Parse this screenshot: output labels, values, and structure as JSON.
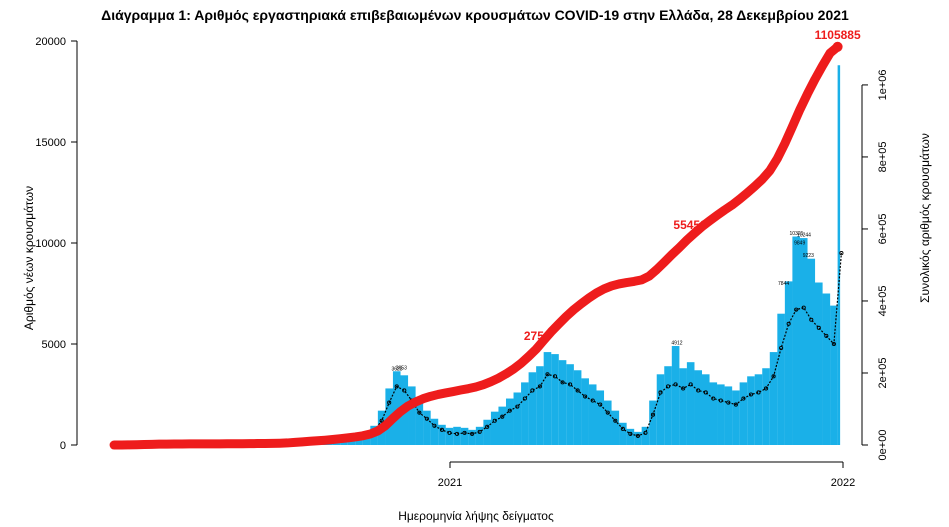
{
  "title": "Διάγραμμα 1: Αριθμός εργαστηριακά επιβεβαιωμένων κρουσμάτων COVID-19 στην Ελλάδα, 28 Δεκεμβρίου 2021",
  "chart_data": {
    "type": "bar",
    "title": "Διάγραμμα 1: Αριθμός εργαστηριακά επιβεβαιωμένων κρουσμάτων COVID-19 στην Ελλάδα, 28 Δεκεμβρίου 2021",
    "xlabel": "Ημερομηνία λήψης δείγματος",
    "ylabel": "Αριθμός νέων κρουσμάτων",
    "ylabel_right": "Συνολικός αριθμός κρουσμάτων",
    "ylim": [
      0,
      20000
    ],
    "ylim_right": [
      0,
      1122000
    ],
    "xticks": [
      "2021",
      "2022"
    ],
    "yticks": [
      "0",
      "5000",
      "10000",
      "15000",
      "20000"
    ],
    "yticks_right": [
      "0e+00",
      "2e+05",
      "4e+05",
      "6e+05",
      "8e+05",
      "1e+06"
    ],
    "grid": false,
    "colors": {
      "bars": "#1ab0e8",
      "moving_average": "#000000",
      "cumulative": "#ee1c1c"
    },
    "x": [
      "2020-02-24",
      "2020-03-02",
      "2020-03-09",
      "2020-03-16",
      "2020-03-23",
      "2020-03-30",
      "2020-04-06",
      "2020-04-13",
      "2020-04-20",
      "2020-04-27",
      "2020-05-04",
      "2020-05-11",
      "2020-05-18",
      "2020-05-25",
      "2020-06-01",
      "2020-06-08",
      "2020-06-15",
      "2020-06-22",
      "2020-06-29",
      "2020-07-06",
      "2020-07-13",
      "2020-07-20",
      "2020-07-27",
      "2020-08-03",
      "2020-08-10",
      "2020-08-17",
      "2020-08-24",
      "2020-08-31",
      "2020-09-07",
      "2020-09-14",
      "2020-09-21",
      "2020-09-28",
      "2020-10-05",
      "2020-10-12",
      "2020-10-19",
      "2020-10-26",
      "2020-11-02",
      "2020-11-09",
      "2020-11-16",
      "2020-11-23",
      "2020-11-30",
      "2020-12-07",
      "2020-12-14",
      "2020-12-21",
      "2020-12-28",
      "2021-01-04",
      "2021-01-11",
      "2021-01-18",
      "2021-01-25",
      "2021-02-01",
      "2021-02-08",
      "2021-02-15",
      "2021-02-22",
      "2021-03-01",
      "2021-03-08",
      "2021-03-15",
      "2021-03-22",
      "2021-03-29",
      "2021-04-05",
      "2021-04-12",
      "2021-04-19",
      "2021-04-26",
      "2021-05-03",
      "2021-05-10",
      "2021-05-17",
      "2021-05-24",
      "2021-05-31",
      "2021-06-07",
      "2021-06-14",
      "2021-06-21",
      "2021-06-28",
      "2021-07-05",
      "2021-07-12",
      "2021-07-19",
      "2021-07-26",
      "2021-08-02",
      "2021-08-09",
      "2021-08-16",
      "2021-08-23",
      "2021-08-30",
      "2021-09-06",
      "2021-09-13",
      "2021-09-20",
      "2021-09-27",
      "2021-10-04",
      "2021-10-11",
      "2021-10-18",
      "2021-10-25",
      "2021-11-01",
      "2021-11-08",
      "2021-11-15",
      "2021-11-22",
      "2021-11-29",
      "2021-12-06",
      "2021-12-13",
      "2021-12-20",
      "2021-12-27"
    ],
    "series": [
      {
        "type": "bar",
        "axis": "left",
        "values": [
          2,
          15,
          40,
          80,
          100,
          110,
          80,
          55,
          40,
          25,
          15,
          15,
          12,
          15,
          18,
          22,
          22,
          30,
          35,
          40,
          45,
          55,
          90,
          170,
          260,
          300,
          290,
          270,
          310,
          380,
          430,
          450,
          520,
          600,
          950,
          1700,
          2800,
          3650,
          3450,
          2900,
          2100,
          1700,
          1300,
          1000,
          850,
          900,
          850,
          750,
          900,
          1250,
          1650,
          1900,
          2300,
          2600,
          3100,
          3600,
          3900,
          4600,
          4500,
          4200,
          4000,
          3700,
          3300,
          3000,
          2700,
          2200,
          1700,
          1100,
          800,
          650,
          900,
          2200,
          3500,
          3900,
          4900,
          3800,
          4100,
          3700,
          3500,
          3100,
          3000,
          2900,
          2700,
          3100,
          3400,
          3500,
          3800,
          4600,
          6500,
          8100,
          10321,
          10244,
          9223,
          8044,
          7500,
          6900,
          18800
        ]
      },
      {
        "type": "line",
        "axis": "left",
        "style": "dotted-markers",
        "values": [
          1,
          10,
          30,
          60,
          80,
          90,
          60,
          40,
          30,
          15,
          10,
          10,
          8,
          10,
          12,
          15,
          15,
          20,
          25,
          30,
          30,
          40,
          60,
          120,
          200,
          230,
          220,
          200,
          230,
          280,
          320,
          330,
          380,
          450,
          700,
          1200,
          2100,
          2900,
          2700,
          2200,
          1600,
          1300,
          950,
          750,
          600,
          550,
          600,
          550,
          650,
          900,
          1200,
          1400,
          1700,
          1900,
          2300,
          2700,
          2900,
          3500,
          3400,
          3100,
          3000,
          2700,
          2400,
          2200,
          2000,
          1600,
          1200,
          800,
          550,
          450,
          600,
          1500,
          2600,
          2900,
          3000,
          2800,
          3000,
          2700,
          2600,
          2300,
          2200,
          2100,
          2000,
          2300,
          2500,
          2600,
          2800,
          3400,
          4800,
          6000,
          6700,
          6800,
          6200,
          5800,
          5400,
          5000,
          9500
        ]
      },
      {
        "type": "line",
        "axis": "right",
        "style": "thick",
        "values": [
          7,
          77,
          287,
          707,
          1267,
          1897,
          2317,
          2597,
          2807,
          2912,
          2982,
          3052,
          3108,
          3178,
          3262,
          3367,
          3472,
          3612,
          3787,
          3997,
          4207,
          4487,
          4907,
          5747,
          7147,
          8757,
          10297,
          11697,
          13307,
          15267,
          17507,
          19817,
          22477,
          25627,
          30527,
          38927,
          53627,
          73927,
          92827,
          108227,
          119427,
          128527,
          135177,
          140427,
          144627,
          148477,
          152677,
          156527,
          161077,
          167377,
          175777,
          185577,
          197477,
          210777,
          226877,
          245777,
          266077,
          290577,
          314377,
          336077,
          357077,
          375977,
          392777,
          408177,
          422177,
          433377,
          441777,
          447377,
          451227,
          454377,
          458577,
          469077,
          487277,
          507577,
          528577,
          548177,
          569177,
          588077,
          606277,
          622377,
          637777,
          652477,
          666477,
          682577,
          700077,
          718277,
          737877,
          761677,
          795277,
          837277,
          884177,
          931777,
          975177,
          1015777,
          1053577,
          1088577,
          1105885
        ]
      }
    ],
    "annotations": [
      {
        "date": "2021-03-23",
        "text": "2754"
      },
      {
        "date": "2021-08-12",
        "text": "55459"
      },
      {
        "date": "2021-12-27",
        "text": "1105885"
      }
    ],
    "bar_labels": [
      {
        "date": "2020-11-10",
        "value": 3623,
        "text": "3623"
      },
      {
        "date": "2020-11-14",
        "value": 3653,
        "text": "3653"
      },
      {
        "date": "2021-07-28",
        "value": 4912,
        "text": "4912"
      },
      {
        "date": "2021-11-04",
        "value": 7844,
        "text": "7844"
      },
      {
        "date": "2021-11-16",
        "value": 10321,
        "text": "10321"
      },
      {
        "date": "2021-11-19",
        "value": 9849,
        "text": "9849"
      },
      {
        "date": "2021-11-23",
        "value": 10244,
        "text": "10244"
      },
      {
        "date": "2021-11-27",
        "value": 9223,
        "text": "9223"
      }
    ]
  }
}
